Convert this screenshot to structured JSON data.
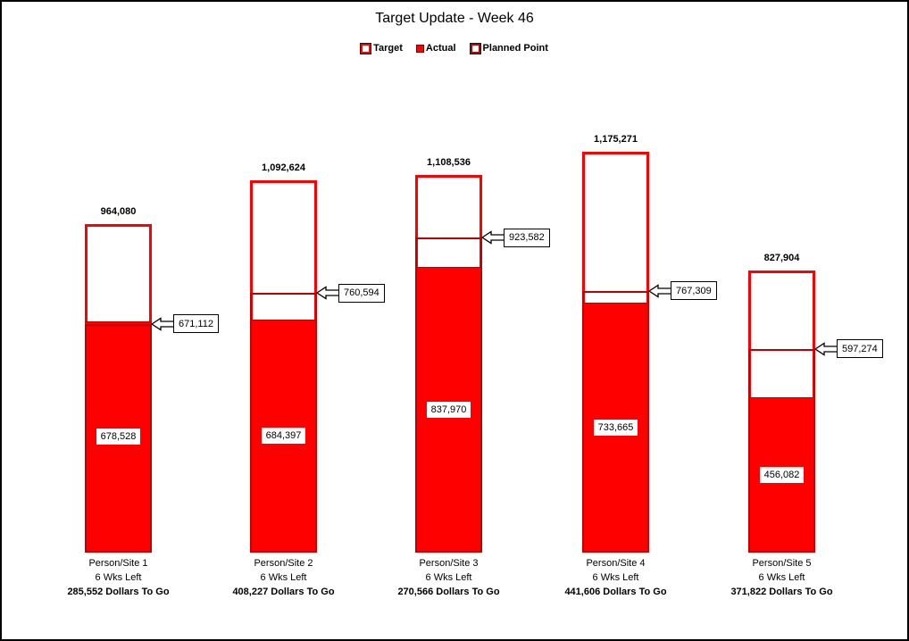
{
  "chart": {
    "legend": [
      {
        "label": "Target",
        "style": "target"
      },
      {
        "label": "Actual",
        "style": "actual"
      },
      {
        "label": "Planned Point",
        "style": "planned"
      }
    ]
  },
  "chart_data": {
    "type": "bar",
    "title": "Target Update - Week 46",
    "categories": [
      "Person/Site 1",
      "Person/Site 2",
      "Person/Site 3",
      "Person/Site 4",
      "Person/Site 5"
    ],
    "series": [
      {
        "name": "Target",
        "values": [
          964080,
          1092624,
          1108536,
          1175271,
          827904
        ]
      },
      {
        "name": "Actual",
        "values": [
          678528,
          684397,
          837970,
          733665,
          456082
        ]
      },
      {
        "name": "Planned Point",
        "values": [
          671112,
          760594,
          923582,
          767309,
          597274
        ]
      }
    ],
    "bars": [
      {
        "category": "Person/Site 1",
        "target": 964080,
        "target_label": "964,080",
        "actual": 678528,
        "actual_label": "678,528",
        "planned": 671112,
        "planned_label": "671,112",
        "weeks_left": "6 Wks Left",
        "dollars_to_go": "285,552 Dollars To Go"
      },
      {
        "category": "Person/Site 2",
        "target": 1092624,
        "target_label": "1,092,624",
        "actual": 684397,
        "actual_label": "684,397",
        "planned": 760594,
        "planned_label": "760,594",
        "weeks_left": "6 Wks Left",
        "dollars_to_go": "408,227 Dollars To Go"
      },
      {
        "category": "Person/Site 3",
        "target": 1108536,
        "target_label": "1,108,536",
        "actual": 837970,
        "actual_label": "837,970",
        "planned": 923582,
        "planned_label": "923,582",
        "weeks_left": "6 Wks Left",
        "dollars_to_go": "270,566 Dollars To Go"
      },
      {
        "category": "Person/Site 4",
        "target": 1175271,
        "target_label": "1,175,271",
        "actual": 733665,
        "actual_label": "733,665",
        "planned": 767309,
        "planned_label": "767,309",
        "weeks_left": "6 Wks Left",
        "dollars_to_go": "441,606 Dollars To Go"
      },
      {
        "category": "Person/Site 5",
        "target": 827904,
        "target_label": "827,904",
        "actual": 456082,
        "actual_label": "456,082",
        "planned": 597274,
        "planned_label": "597,274",
        "weeks_left": "6 Wks Left",
        "dollars_to_go": "371,822 Dollars To Go"
      }
    ],
    "ylim": [
      0,
      1200000
    ],
    "grid": false,
    "value_axis_visible": false,
    "legend_position": "top"
  },
  "colors": {
    "red": "#FF0000",
    "dark_red": "#C00000",
    "text": "#000000",
    "background": "#FFFFFF",
    "callout_border": "#000000"
  }
}
